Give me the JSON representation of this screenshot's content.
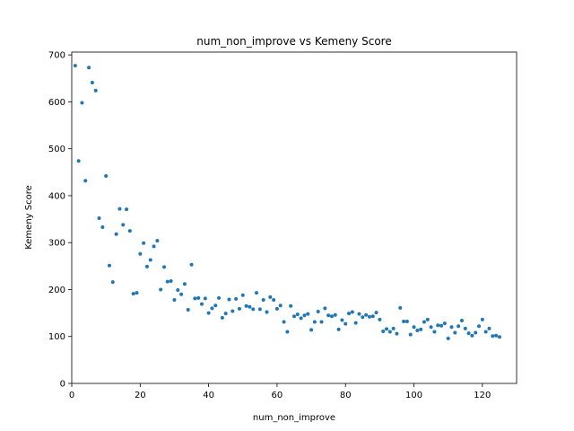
{
  "chart_data": {
    "type": "scatter",
    "title": "num_non_improve vs Kemeny Score",
    "xlabel": "num_non_improve",
    "ylabel": "Kemeny Score",
    "xlim": [
      0,
      130
    ],
    "ylim": [
      0,
      706
    ],
    "xticks": [
      0,
      20,
      40,
      60,
      80,
      100,
      120
    ],
    "yticks": [
      0,
      100,
      200,
      300,
      400,
      500,
      600,
      700
    ],
    "grid": false,
    "legend": "none",
    "marker_color": "#1f77b4",
    "points": [
      [
        1,
        677
      ],
      [
        2,
        474
      ],
      [
        3,
        598
      ],
      [
        4,
        432
      ],
      [
        5,
        673
      ],
      [
        6,
        641
      ],
      [
        7,
        624
      ],
      [
        8,
        352
      ],
      [
        9,
        333
      ],
      [
        10,
        442
      ],
      [
        11,
        251
      ],
      [
        12,
        216
      ],
      [
        13,
        318
      ],
      [
        14,
        372
      ],
      [
        15,
        338
      ],
      [
        16,
        371
      ],
      [
        17,
        325
      ],
      [
        18,
        191
      ],
      [
        19,
        193
      ],
      [
        20,
        276
      ],
      [
        21,
        299
      ],
      [
        22,
        249
      ],
      [
        23,
        263
      ],
      [
        24,
        292
      ],
      [
        25,
        304
      ],
      [
        26,
        200
      ],
      [
        27,
        248
      ],
      [
        28,
        217
      ],
      [
        29,
        218
      ],
      [
        30,
        178
      ],
      [
        31,
        199
      ],
      [
        32,
        190
      ],
      [
        33,
        212
      ],
      [
        34,
        157
      ],
      [
        35,
        253
      ],
      [
        36,
        181
      ],
      [
        37,
        182
      ],
      [
        38,
        169
      ],
      [
        39,
        181
      ],
      [
        40,
        150
      ],
      [
        41,
        160
      ],
      [
        42,
        166
      ],
      [
        43,
        182
      ],
      [
        44,
        140
      ],
      [
        45,
        149
      ],
      [
        46,
        179
      ],
      [
        47,
        154
      ],
      [
        48,
        180
      ],
      [
        49,
        159
      ],
      [
        50,
        188
      ],
      [
        51,
        165
      ],
      [
        52,
        163
      ],
      [
        53,
        158
      ],
      [
        54,
        193
      ],
      [
        55,
        158
      ],
      [
        56,
        178
      ],
      [
        57,
        152
      ],
      [
        58,
        184
      ],
      [
        59,
        178
      ],
      [
        60,
        159
      ],
      [
        61,
        166
      ],
      [
        62,
        131
      ],
      [
        63,
        110
      ],
      [
        64,
        165
      ],
      [
        65,
        143
      ],
      [
        66,
        147
      ],
      [
        67,
        139
      ],
      [
        68,
        145
      ],
      [
        69,
        148
      ],
      [
        70,
        114
      ],
      [
        71,
        131
      ],
      [
        72,
        153
      ],
      [
        73,
        131
      ],
      [
        74,
        160
      ],
      [
        75,
        145
      ],
      [
        76,
        143
      ],
      [
        77,
        146
      ],
      [
        78,
        115
      ],
      [
        79,
        135
      ],
      [
        80,
        127
      ],
      [
        81,
        149
      ],
      [
        82,
        152
      ],
      [
        83,
        129
      ],
      [
        84,
        148
      ],
      [
        85,
        141
      ],
      [
        86,
        146
      ],
      [
        87,
        142
      ],
      [
        88,
        143
      ],
      [
        89,
        151
      ],
      [
        90,
        136
      ],
      [
        91,
        111
      ],
      [
        92,
        116
      ],
      [
        93,
        110
      ],
      [
        94,
        117
      ],
      [
        95,
        106
      ],
      [
        96,
        161
      ],
      [
        97,
        132
      ],
      [
        98,
        132
      ],
      [
        99,
        104
      ],
      [
        100,
        120
      ],
      [
        101,
        113
      ],
      [
        102,
        115
      ],
      [
        103,
        131
      ],
      [
        104,
        136
      ],
      [
        105,
        120
      ],
      [
        106,
        110
      ],
      [
        107,
        124
      ],
      [
        108,
        123
      ],
      [
        109,
        128
      ],
      [
        110,
        96
      ],
      [
        111,
        120
      ],
      [
        112,
        108
      ],
      [
        113,
        122
      ],
      [
        114,
        134
      ],
      [
        115,
        117
      ],
      [
        116,
        107
      ],
      [
        117,
        102
      ],
      [
        118,
        108
      ],
      [
        119,
        122
      ],
      [
        120,
        136
      ],
      [
        121,
        110
      ],
      [
        122,
        117
      ],
      [
        123,
        101
      ],
      [
        124,
        102
      ],
      [
        125,
        99
      ]
    ]
  }
}
